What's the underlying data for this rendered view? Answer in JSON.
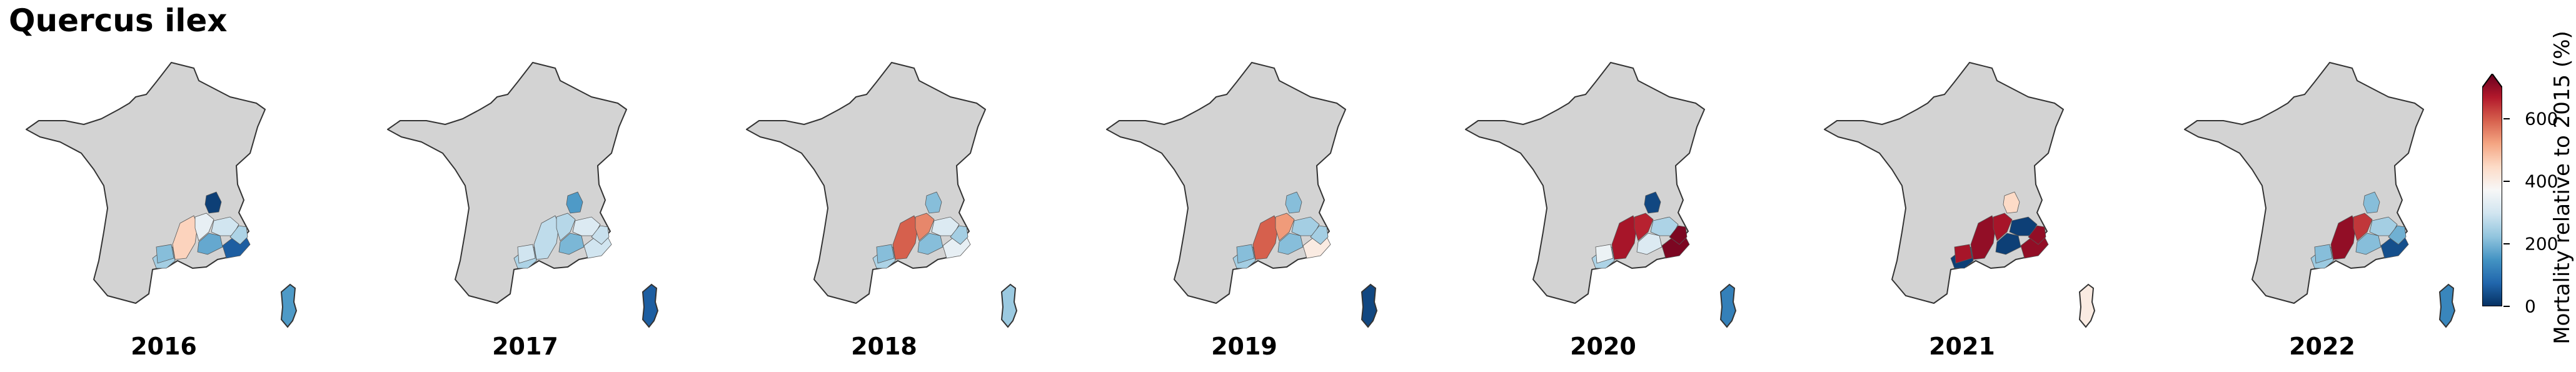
{
  "title": "Quercus ilex",
  "colors": {
    "land": "#d3d3d3",
    "outline": "#333333",
    "scale": [
      "#053061",
      "#2166ac",
      "#4393c3",
      "#92c5de",
      "#d1e5f0",
      "#f7f7f7",
      "#fddbc7",
      "#f4a582",
      "#d6604d",
      "#b2182b",
      "#67001f"
    ]
  },
  "colorbar": {
    "label": "Mortality relative to 2015 (%)",
    "ticks": [
      "0",
      "200",
      "400",
      "600"
    ],
    "tick_values": [
      0,
      200,
      400,
      600
    ],
    "min": 0,
    "max": 700,
    "extend": "max"
  },
  "panels": [
    {
      "year": "2016",
      "regions": {
        "r1": 430,
        "r2": 320,
        "r3": 170,
        "r4": 280,
        "r5": 60,
        "r6": 240,
        "r7": 230,
        "r8": 200,
        "r9": 20,
        "corsica": 150
      }
    },
    {
      "year": "2017",
      "regions": {
        "r1": 260,
        "r2": 250,
        "r3": 190,
        "r4": 300,
        "r5": 280,
        "r6": 270,
        "r7": 240,
        "r8": 280,
        "r9": 150,
        "corsica": 60
      }
    },
    {
      "year": "2018",
      "regions": {
        "r1": 560,
        "r2": 520,
        "r3": 200,
        "r4": 300,
        "r5": 320,
        "r6": 230,
        "r7": 240,
        "r8": 200,
        "r9": 200,
        "corsica": 220
      }
    },
    {
      "year": "2019",
      "regions": {
        "r1": 560,
        "r2": 500,
        "r3": 200,
        "r4": 230,
        "r5": 380,
        "r6": 230,
        "r7": 230,
        "r8": 200,
        "r9": 200,
        "corsica": 30
      }
    },
    {
      "year": "2020",
      "regions": {
        "r1": 640,
        "r2": 620,
        "r3": 300,
        "r4": 240,
        "r5": 680,
        "r6": 680,
        "r7": 240,
        "r8": 330,
        "r9": 30,
        "corsica": 110
      }
    },
    {
      "year": "2021",
      "regions": {
        "r1": 660,
        "r2": 640,
        "r3": 20,
        "r4": 20,
        "r5": 660,
        "r6": 660,
        "r7": 20,
        "r8": 640,
        "r9": 420,
        "corsica": 380
      }
    },
    {
      "year": "2022",
      "regions": {
        "r1": 660,
        "r2": 600,
        "r3": 200,
        "r4": 230,
        "r5": 40,
        "r6": 180,
        "r7": 220,
        "r8": 200,
        "r9": 200,
        "corsica": 120
      }
    }
  ]
}
